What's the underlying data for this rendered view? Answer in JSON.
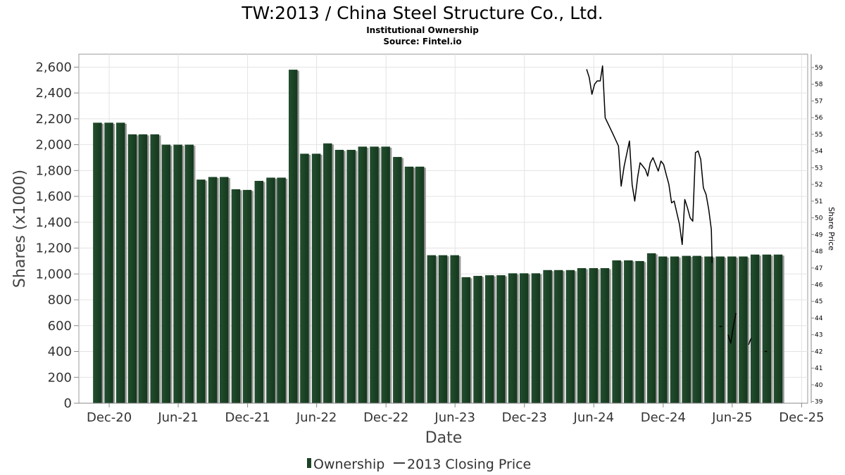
{
  "chart_data": {
    "type": "bar",
    "title": "TW:2013 / China Steel Structure Co., Ltd.",
    "subtitle": "Institutional Ownership",
    "source": "Source: Fintel.io",
    "xlabel": "Date",
    "ylabel": "Shares (x1000)",
    "y2label": "Share Price",
    "ylim": [
      0,
      2700
    ],
    "y2lim": [
      38.9,
      59.8
    ],
    "yticks": [
      0,
      200,
      400,
      600,
      800,
      1000,
      1200,
      1400,
      1600,
      1800,
      2000,
      2200,
      2400,
      2600
    ],
    "ytick_labels": [
      "0",
      "200",
      "400",
      "600",
      "800",
      "1,000",
      "1,200",
      "1,400",
      "1,600",
      "1,800",
      "2,000",
      "2,200",
      "2,400",
      "2,600"
    ],
    "y2ticks": [
      39,
      40,
      41,
      42,
      43,
      44,
      45,
      46,
      47,
      48,
      49,
      50,
      51,
      52,
      53,
      54,
      55,
      56,
      57,
      58,
      59
    ],
    "x_range": [
      "2020-09-12",
      "2025-12-17"
    ],
    "x_ticks": [
      {
        "date": "2020-12-01",
        "label": "Dec-20"
      },
      {
        "date": "2021-06-01",
        "label": "Jun-21"
      },
      {
        "date": "2021-12-01",
        "label": "Dec-21"
      },
      {
        "date": "2022-06-01",
        "label": "Jun-22"
      },
      {
        "date": "2022-12-01",
        "label": "Dec-22"
      },
      {
        "date": "2023-06-01",
        "label": "Jun-23"
      },
      {
        "date": "2023-12-01",
        "label": "Dec-23"
      },
      {
        "date": "2024-06-01",
        "label": "Jun-24"
      },
      {
        "date": "2024-12-01",
        "label": "Dec-24"
      },
      {
        "date": "2025-06-01",
        "label": "Jun-25"
      },
      {
        "date": "2025-12-01",
        "label": "Dec-25"
      }
    ],
    "grid": true,
    "legend_position": "bottom",
    "series": [
      {
        "name": "Ownership",
        "type": "bar",
        "color": "#1b4325",
        "points": [
          {
            "x": "2020-10-31",
            "y": 2170
          },
          {
            "x": "2020-11-30",
            "y": 2170
          },
          {
            "x": "2020-12-31",
            "y": 2170
          },
          {
            "x": "2021-01-31",
            "y": 2080
          },
          {
            "x": "2021-02-28",
            "y": 2080
          },
          {
            "x": "2021-03-31",
            "y": 2080
          },
          {
            "x": "2021-04-30",
            "y": 2000
          },
          {
            "x": "2021-05-31",
            "y": 2000
          },
          {
            "x": "2021-06-30",
            "y": 2000
          },
          {
            "x": "2021-07-31",
            "y": 1730
          },
          {
            "x": "2021-08-31",
            "y": 1750
          },
          {
            "x": "2021-09-30",
            "y": 1750
          },
          {
            "x": "2021-10-31",
            "y": 1655
          },
          {
            "x": "2021-11-30",
            "y": 1650
          },
          {
            "x": "2021-12-31",
            "y": 1720
          },
          {
            "x": "2022-01-31",
            "y": 1745
          },
          {
            "x": "2022-02-28",
            "y": 1745
          },
          {
            "x": "2022-03-31",
            "y": 2580
          },
          {
            "x": "2022-04-30",
            "y": 1930
          },
          {
            "x": "2022-05-31",
            "y": 1930
          },
          {
            "x": "2022-06-30",
            "y": 2010
          },
          {
            "x": "2022-07-31",
            "y": 1960
          },
          {
            "x": "2022-08-31",
            "y": 1960
          },
          {
            "x": "2022-09-30",
            "y": 1985
          },
          {
            "x": "2022-10-31",
            "y": 1985
          },
          {
            "x": "2022-11-30",
            "y": 1985
          },
          {
            "x": "2022-12-31",
            "y": 1905
          },
          {
            "x": "2023-01-31",
            "y": 1830
          },
          {
            "x": "2023-02-28",
            "y": 1830
          },
          {
            "x": "2023-03-31",
            "y": 1145
          },
          {
            "x": "2023-04-30",
            "y": 1145
          },
          {
            "x": "2023-05-31",
            "y": 1145
          },
          {
            "x": "2023-06-30",
            "y": 975
          },
          {
            "x": "2023-07-31",
            "y": 985
          },
          {
            "x": "2023-08-31",
            "y": 990
          },
          {
            "x": "2023-09-30",
            "y": 990
          },
          {
            "x": "2023-10-31",
            "y": 1005
          },
          {
            "x": "2023-11-30",
            "y": 1005
          },
          {
            "x": "2023-12-31",
            "y": 1005
          },
          {
            "x": "2024-01-31",
            "y": 1030
          },
          {
            "x": "2024-02-29",
            "y": 1030
          },
          {
            "x": "2024-03-31",
            "y": 1030
          },
          {
            "x": "2024-04-30",
            "y": 1045
          },
          {
            "x": "2024-05-31",
            "y": 1045
          },
          {
            "x": "2024-06-30",
            "y": 1045
          },
          {
            "x": "2024-07-31",
            "y": 1105
          },
          {
            "x": "2024-08-31",
            "y": 1105
          },
          {
            "x": "2024-09-30",
            "y": 1100
          },
          {
            "x": "2024-10-31",
            "y": 1160
          },
          {
            "x": "2024-11-30",
            "y": 1135
          },
          {
            "x": "2024-12-31",
            "y": 1135
          },
          {
            "x": "2025-01-31",
            "y": 1140
          },
          {
            "x": "2025-02-28",
            "y": 1140
          },
          {
            "x": "2025-03-31",
            "y": 1135
          },
          {
            "x": "2025-04-30",
            "y": 1135
          },
          {
            "x": "2025-05-31",
            "y": 1135
          },
          {
            "x": "2025-06-30",
            "y": 1135
          },
          {
            "x": "2025-07-31",
            "y": 1150
          },
          {
            "x": "2025-08-31",
            "y": 1150
          },
          {
            "x": "2025-09-30",
            "y": 1150
          }
        ]
      },
      {
        "name": "2013 Closing Price",
        "type": "line",
        "axis": "right",
        "color": "#000000",
        "segments": [
          [
            {
              "x": "2024-05-13",
              "y": 58.9
            },
            {
              "x": "2024-05-20",
              "y": 58.4
            },
            {
              "x": "2024-05-27",
              "y": 57.4
            },
            {
              "x": "2024-06-03",
              "y": 58.0
            },
            {
              "x": "2024-06-10",
              "y": 58.2
            },
            {
              "x": "2024-06-18",
              "y": 58.2
            },
            {
              "x": "2024-06-24",
              "y": 59.1
            },
            {
              "x": "2024-07-01",
              "y": 56.0
            },
            {
              "x": "2024-07-22",
              "y": 55.0
            },
            {
              "x": "2024-08-05",
              "y": 54.3
            },
            {
              "x": "2024-08-12",
              "y": 51.9
            },
            {
              "x": "2024-08-20",
              "y": 53.1
            },
            {
              "x": "2024-09-03",
              "y": 54.6
            },
            {
              "x": "2024-09-10",
              "y": 52.0
            },
            {
              "x": "2024-09-17",
              "y": 51.0
            },
            {
              "x": "2024-09-25",
              "y": 52.5
            },
            {
              "x": "2024-10-01",
              "y": 53.3
            },
            {
              "x": "2024-10-08",
              "y": 53.1
            },
            {
              "x": "2024-10-15",
              "y": 52.9
            },
            {
              "x": "2024-10-21",
              "y": 52.5
            },
            {
              "x": "2024-10-28",
              "y": 53.3
            },
            {
              "x": "2024-11-04",
              "y": 53.6
            },
            {
              "x": "2024-11-11",
              "y": 53.2
            },
            {
              "x": "2024-11-18",
              "y": 52.8
            },
            {
              "x": "2024-11-25",
              "y": 53.4
            },
            {
              "x": "2024-12-02",
              "y": 53.2
            },
            {
              "x": "2024-12-09",
              "y": 52.6
            },
            {
              "x": "2024-12-16",
              "y": 52.0
            },
            {
              "x": "2024-12-23",
              "y": 50.9
            },
            {
              "x": "2024-12-30",
              "y": 51.0
            },
            {
              "x": "2025-01-06",
              "y": 50.3
            },
            {
              "x": "2025-01-13",
              "y": 49.6
            },
            {
              "x": "2025-01-20",
              "y": 48.4
            },
            {
              "x": "2025-01-27",
              "y": 51.1
            },
            {
              "x": "2025-02-03",
              "y": 50.6
            },
            {
              "x": "2025-02-10",
              "y": 50.0
            },
            {
              "x": "2025-02-17",
              "y": 49.8
            },
            {
              "x": "2025-02-24",
              "y": 53.9
            },
            {
              "x": "2025-03-03",
              "y": 54.0
            },
            {
              "x": "2025-03-10",
              "y": 53.5
            },
            {
              "x": "2025-03-17",
              "y": 51.8
            },
            {
              "x": "2025-03-24",
              "y": 51.4
            },
            {
              "x": "2025-03-31",
              "y": 50.5
            },
            {
              "x": "2025-04-07",
              "y": 49.3
            },
            {
              "x": "2025-04-09",
              "y": 47.3
            }
          ],
          [
            {
              "x": "2025-04-28",
              "y": 43.5
            },
            {
              "x": "2025-05-05",
              "y": 43.5
            }
          ],
          [
            {
              "x": "2025-05-21",
              "y": 43.0
            },
            {
              "x": "2025-05-28",
              "y": 42.5
            },
            {
              "x": "2025-06-04",
              "y": 43.5
            },
            {
              "x": "2025-06-11",
              "y": 44.3
            }
          ],
          [
            {
              "x": "2025-07-14",
              "y": 42.4
            },
            {
              "x": "2025-07-21",
              "y": 42.8
            }
          ],
          [
            {
              "x": "2025-08-25",
              "y": 42.0
            },
            {
              "x": "2025-09-01",
              "y": 42.0
            }
          ]
        ]
      }
    ]
  }
}
